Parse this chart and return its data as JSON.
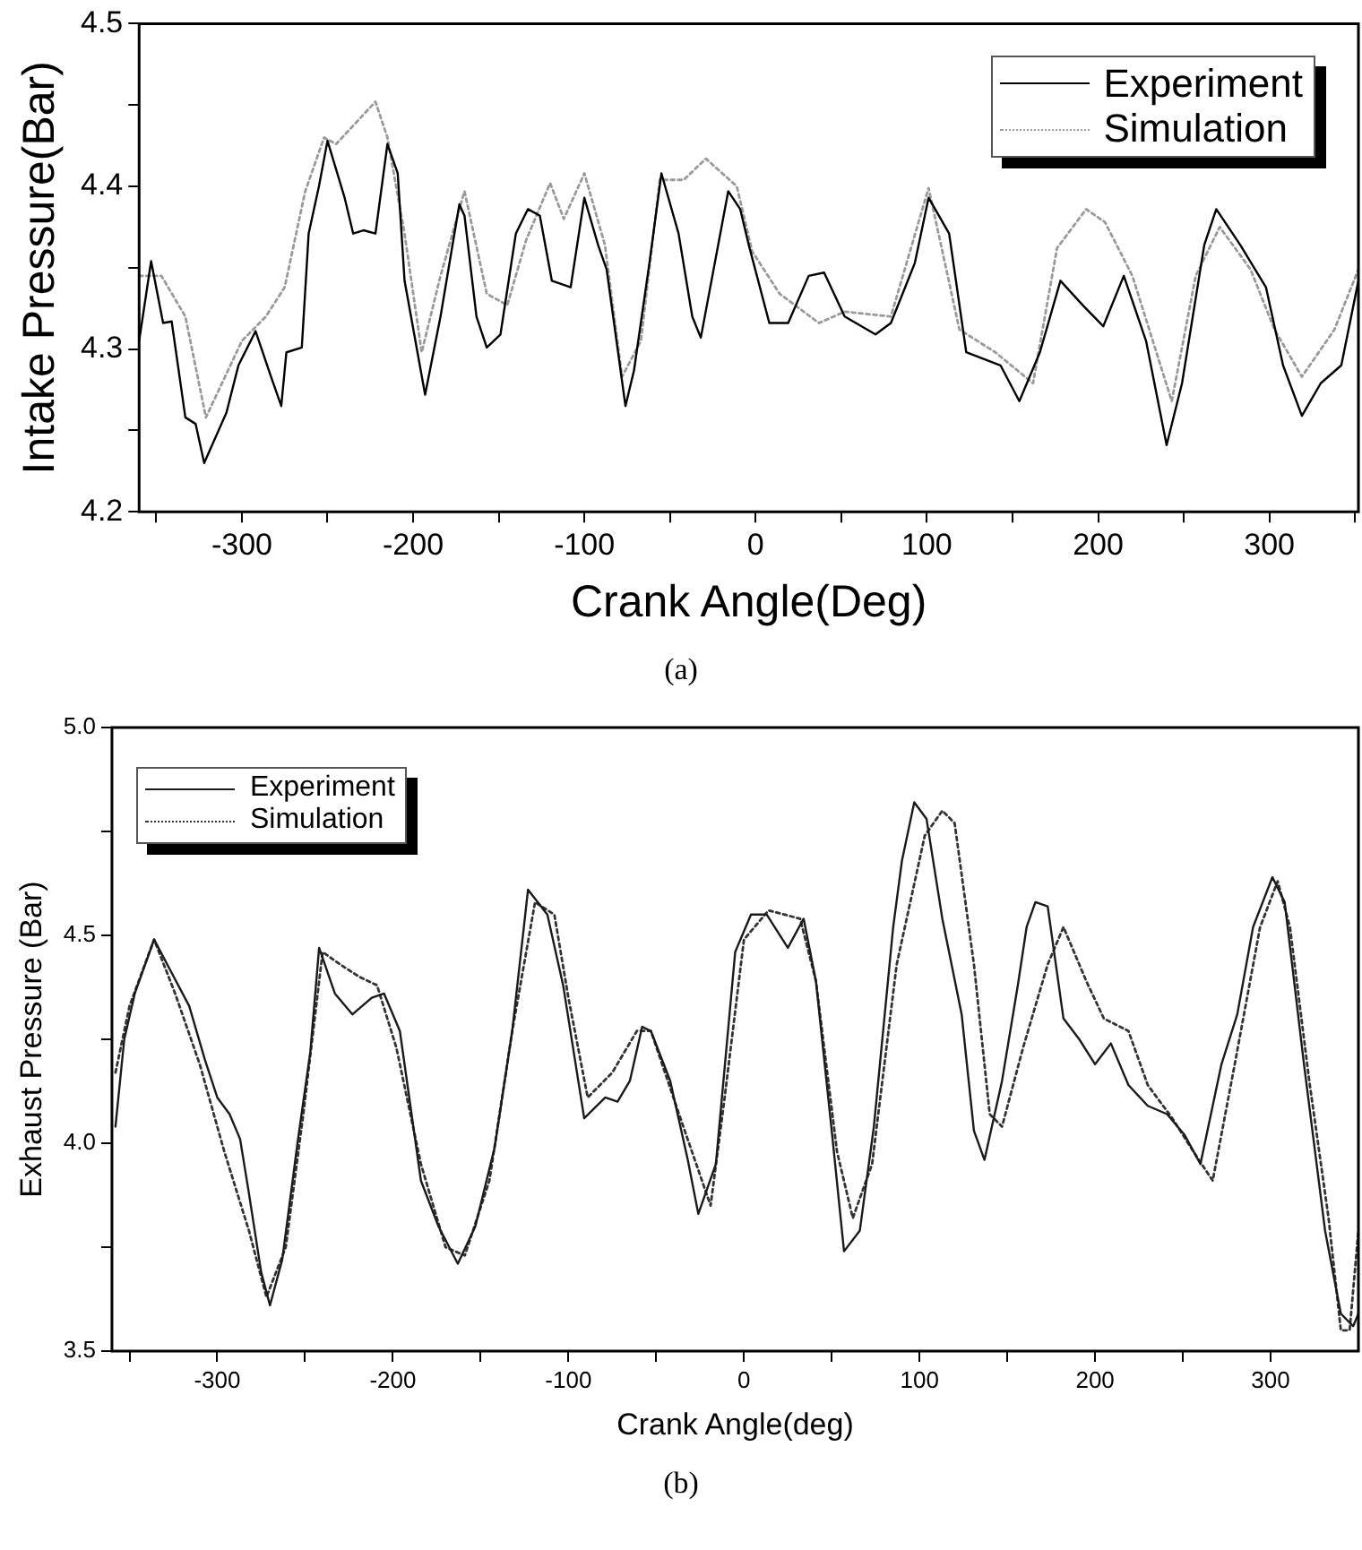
{
  "chart_data": [
    {
      "type": "line",
      "xlabel": "Crank Angle(Deg)",
      "ylabel": "Intake Pressure(Bar)",
      "annotations": [
        "(a)"
      ],
      "legend": "top right",
      "grid": false,
      "marker": "none",
      "xlim": [
        -360,
        352
      ],
      "xticks": [
        {
          "value": -350,
          "label": null
        },
        -300,
        {
          "value": -250,
          "label": null
        },
        -200,
        {
          "value": -150,
          "label": null
        },
        -100,
        {
          "value": -50,
          "label": null
        },
        0,
        {
          "value": 50,
          "label": null
        },
        100,
        {
          "value": 150,
          "label": null
        },
        200,
        {
          "value": 250,
          "label": null
        },
        300,
        {
          "value": 350,
          "label": null
        }
      ],
      "ylim": [
        4.2,
        4.5
      ],
      "yticks": [
        4.2,
        {
          "value": 4.25,
          "label": null
        },
        4.3,
        {
          "value": 4.35,
          "label": null
        },
        4.4,
        {
          "value": 4.45,
          "label": null
        },
        4.5
      ],
      "series": [
        {
          "name": "Experiment",
          "color": "#000000",
          "line_style": "solid",
          "x": [
            -360,
            -353,
            -346,
            -341,
            -333,
            -327,
            -322,
            -309,
            -302,
            -292,
            -283,
            -277,
            -274,
            -265,
            -261,
            -255,
            -250,
            -240,
            -235,
            -229,
            -222,
            -215,
            -209,
            -205,
            -193,
            -184,
            -173,
            -170,
            -163,
            -157,
            -149,
            -140,
            -133,
            -126,
            -119,
            -108,
            -100,
            -92,
            -87,
            -76,
            -71,
            -62,
            -55,
            -45,
            -37,
            -32,
            -16,
            -9,
            -4,
            8,
            19,
            31,
            40,
            52,
            70,
            79,
            93,
            101,
            113,
            123,
            143,
            154,
            166,
            178,
            191,
            203,
            215,
            228,
            240,
            249,
            262,
            269,
            283,
            298,
            308,
            319,
            330,
            342,
            352
          ],
          "values": [
            4.305,
            4.354,
            4.316,
            4.317,
            4.258,
            4.254,
            4.23,
            4.261,
            4.29,
            4.311,
            4.283,
            4.265,
            4.298,
            4.301,
            4.371,
            4.4,
            4.428,
            4.393,
            4.371,
            4.373,
            4.371,
            4.426,
            4.408,
            4.342,
            4.272,
            4.32,
            4.389,
            4.382,
            4.32,
            4.301,
            4.309,
            4.371,
            4.386,
            4.382,
            4.342,
            4.338,
            4.393,
            4.364,
            4.349,
            4.265,
            4.287,
            4.353,
            4.408,
            4.371,
            4.32,
            4.307,
            4.397,
            4.386,
            4.364,
            4.316,
            4.316,
            4.345,
            4.347,
            4.32,
            4.309,
            4.316,
            4.353,
            4.393,
            4.371,
            4.298,
            4.29,
            4.268,
            4.298,
            4.342,
            4.327,
            4.314,
            4.345,
            4.305,
            4.241,
            4.279,
            4.364,
            4.386,
            4.364,
            4.338,
            4.29,
            4.259,
            4.279,
            4.29,
            4.342
          ]
        },
        {
          "name": "Simulation",
          "color": "#9a9a9a",
          "line_style": "dotted",
          "x": [
            -360,
            -347,
            -333,
            -321,
            -300,
            -286,
            -275,
            -263,
            -252,
            -245,
            -222,
            -215,
            -205,
            -195,
            -184,
            -170,
            -157,
            -145,
            -134,
            -120,
            -112,
            -100,
            -88,
            -78,
            -67,
            -56,
            -42,
            -29,
            -11,
            -2,
            14,
            37,
            52,
            79,
            101,
            119,
            140,
            162,
            176,
            193,
            204,
            220,
            243,
            257,
            271,
            289,
            303,
            319,
            338,
            352
          ],
          "values": [
            4.345,
            4.345,
            4.32,
            4.258,
            4.305,
            4.32,
            4.338,
            4.397,
            4.43,
            4.426,
            4.452,
            4.43,
            4.371,
            4.298,
            4.345,
            4.397,
            4.334,
            4.327,
            4.367,
            4.402,
            4.38,
            4.408,
            4.364,
            4.283,
            4.305,
            4.404,
            4.404,
            4.417,
            4.4,
            4.36,
            4.334,
            4.316,
            4.323,
            4.32,
            4.399,
            4.312,
            4.298,
            4.279,
            4.362,
            4.386,
            4.378,
            4.345,
            4.268,
            4.345,
            4.375,
            4.349,
            4.312,
            4.283,
            4.312,
            4.349
          ]
        }
      ]
    },
    {
      "type": "line",
      "xlabel": "Crank Angle(deg)",
      "ylabel": "Exhaust Pressure (Bar)",
      "annotations": [
        "(b)"
      ],
      "legend": "top left",
      "grid": false,
      "marker": "none",
      "xlim": [
        -360,
        350
      ],
      "xticks": [
        {
          "value": -350,
          "label": null
        },
        -300,
        {
          "value": -250,
          "label": null
        },
        -200,
        {
          "value": -150,
          "label": null
        },
        -100,
        {
          "value": -50,
          "label": null
        },
        0,
        {
          "value": 50,
          "label": null
        },
        100,
        {
          "value": 150,
          "label": null
        },
        200,
        {
          "value": 250,
          "label": null
        },
        300
      ],
      "ylim": [
        3.5,
        5.0
      ],
      "yticks": [
        {
          "value": 3.5,
          "label": "3.5"
        },
        {
          "value": 3.75,
          "label": null
        },
        {
          "value": 4.0,
          "label": "4.0"
        },
        {
          "value": 4.25,
          "label": null
        },
        {
          "value": 4.5,
          "label": "4.5"
        },
        {
          "value": 4.75,
          "label": null
        },
        {
          "value": 5.0,
          "label": "5.0"
        }
      ],
      "series": [
        {
          "name": "Experiment",
          "color": "#1a1a1a",
          "line_style": "solid",
          "x": [
            -358,
            -353,
            -347,
            -336,
            -326,
            -316,
            -307,
            -300,
            -293,
            -287,
            -282,
            -275,
            -270,
            -263,
            -254,
            -247,
            -242,
            -233,
            -223,
            -212,
            -205,
            -196,
            -184,
            -174,
            -163,
            -153,
            -142,
            -132,
            -123,
            -112,
            -103,
            -91,
            -79,
            -72,
            -65,
            -58,
            -53,
            -42,
            -32,
            -26,
            -16,
            -5,
            4,
            13,
            25,
            34,
            41,
            50,
            57,
            66,
            74,
            85,
            90,
            97,
            104,
            113,
            124,
            131,
            137,
            147,
            156,
            161,
            166,
            173,
            182,
            191,
            200,
            209,
            219,
            230,
            241,
            251,
            260,
            272,
            281,
            290,
            301,
            308,
            319,
            331,
            340,
            347,
            350
          ],
          "values": [
            4.04,
            4.25,
            4.36,
            4.49,
            4.41,
            4.33,
            4.2,
            4.11,
            4.07,
            4.01,
            3.88,
            3.69,
            3.61,
            3.72,
            4.01,
            4.22,
            4.47,
            4.36,
            4.31,
            4.35,
            4.36,
            4.27,
            3.91,
            3.8,
            3.71,
            3.8,
            3.99,
            4.27,
            4.61,
            4.55,
            4.38,
            4.06,
            4.11,
            4.1,
            4.15,
            4.28,
            4.27,
            4.15,
            3.96,
            3.83,
            3.95,
            4.46,
            4.55,
            4.55,
            4.47,
            4.54,
            4.39,
            4.03,
            3.74,
            3.79,
            4.04,
            4.52,
            4.68,
            4.82,
            4.78,
            4.54,
            4.31,
            4.03,
            3.96,
            4.15,
            4.38,
            4.52,
            4.58,
            4.57,
            4.3,
            4.25,
            4.19,
            4.24,
            4.14,
            4.09,
            4.07,
            4.02,
            3.95,
            4.19,
            4.31,
            4.52,
            4.64,
            4.58,
            4.19,
            3.79,
            3.59,
            3.56,
            3.59
          ]
        },
        {
          "name": "Simulation",
          "color": "#333333",
          "line_style": "dotted",
          "x": [
            -358,
            -350,
            -336,
            -324,
            -310,
            -296,
            -282,
            -272,
            -261,
            -251,
            -240,
            -230,
            -219,
            -209,
            -198,
            -184,
            -170,
            -159,
            -145,
            -132,
            -119,
            -108,
            -100,
            -89,
            -75,
            -61,
            -53,
            -37,
            -19,
            -11,
            0,
            14,
            32,
            41,
            53,
            62,
            73,
            87,
            103,
            113,
            120,
            131,
            140,
            147,
            159,
            173,
            182,
            195,
            205,
            219,
            230,
            244,
            256,
            267,
            280,
            294,
            304,
            311,
            322,
            333,
            340,
            345,
            350
          ],
          "values": [
            4.17,
            4.33,
            4.49,
            4.36,
            4.19,
            3.98,
            3.79,
            3.63,
            3.75,
            4.07,
            4.46,
            4.43,
            4.4,
            4.38,
            4.23,
            3.95,
            3.75,
            3.73,
            3.91,
            4.27,
            4.58,
            4.55,
            4.35,
            4.11,
            4.17,
            4.27,
            4.27,
            4.07,
            3.85,
            4.11,
            4.49,
            4.56,
            4.54,
            4.39,
            3.98,
            3.82,
            3.95,
            4.43,
            4.74,
            4.8,
            4.77,
            4.43,
            4.07,
            4.04,
            4.23,
            4.43,
            4.52,
            4.39,
            4.3,
            4.27,
            4.14,
            4.06,
            3.98,
            3.91,
            4.2,
            4.52,
            4.63,
            4.52,
            4.15,
            3.82,
            3.55,
            3.55,
            3.79
          ]
        }
      ]
    }
  ]
}
